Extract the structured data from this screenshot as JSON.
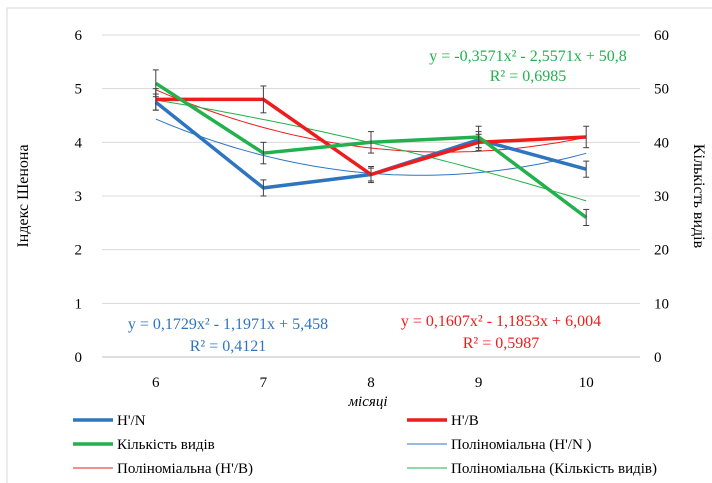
{
  "chart_data": {
    "type": "line",
    "xlabel": "місяці",
    "ylabel_left": "Індекс Шенона",
    "ylabel_right": "Кількість видів",
    "categories": [
      "6",
      "7",
      "8",
      "9",
      "10"
    ],
    "ylim_left": [
      0,
      6
    ],
    "ylim_right": [
      0,
      60
    ],
    "yticks_left": [
      "0",
      "1",
      "2",
      "3",
      "4",
      "5",
      "6"
    ],
    "yticks_right": [
      "0",
      "10",
      "20",
      "30",
      "40",
      "50",
      "60"
    ],
    "grid": true,
    "legend_position": "bottom",
    "series": [
      {
        "name": "H'/N",
        "axis": "left",
        "color": "#2e75c0",
        "width": 3.5,
        "values": [
          4.75,
          3.15,
          3.4,
          4.05,
          3.5
        ],
        "errors": [
          0.15,
          0.15,
          0.12,
          0.15,
          0.15
        ]
      },
      {
        "name": "H'/B",
        "axis": "left",
        "color": "#ee1c1c",
        "width": 3.5,
        "values": [
          4.8,
          4.8,
          3.4,
          4.0,
          4.1
        ],
        "errors": [
          0.2,
          0.25,
          0.15,
          0.15,
          0.2
        ]
      },
      {
        "name": "Кількість видів",
        "axis": "right",
        "color": "#22b14c",
        "width": 3.5,
        "values": [
          51,
          38,
          40,
          41,
          26
        ],
        "errors": [
          2.5,
          2.0,
          2.0,
          2.0,
          1.5
        ]
      }
    ],
    "trendlines": [
      {
        "name": "Поліноміальна (H'/N )",
        "axis": "left",
        "color": "#2e75c0",
        "coef": [
          0.1729,
          -1.1971,
          5.458
        ]
      },
      {
        "name": "Поліноміальна (H'/B)",
        "axis": "left",
        "color": "#ee1c1c",
        "coef": [
          0.1607,
          -1.1853,
          6.004
        ]
      },
      {
        "name": "Поліноміальна (Кількість видів)",
        "axis": "right",
        "color": "#22b14c",
        "coef": [
          -0.3571,
          -2.5571,
          50.8
        ]
      }
    ],
    "annotations": [
      {
        "eq": "y = -0,3571x² - 2,5571x + 50,8",
        "r2": "R² = 0,6985",
        "color": "#22b14c"
      },
      {
        "eq": "y = 0,1729x² - 1,1971x + 5,458",
        "r2": "R² = 0,4121",
        "color": "#2e75c0"
      },
      {
        "eq": "y = 0,1607x² - 1,1853x + 6,004",
        "r2": "R² = 0,5987",
        "color": "#ee1c1c"
      }
    ],
    "legend": [
      {
        "label": "H'/N",
        "color": "#2e75c0",
        "thick": true
      },
      {
        "label": "H'/B",
        "color": "#ee1c1c",
        "thick": true
      },
      {
        "label": "Кількість видів",
        "color": "#22b14c",
        "thick": true
      },
      {
        "label": "Поліноміальна (H'/N )",
        "color": "#2e75c0",
        "thick": false
      },
      {
        "label": "Поліноміальна (H'/B)",
        "color": "#ee1c1c",
        "thick": false
      },
      {
        "label": "Поліноміальна (Кількість видів)",
        "color": "#22b14c",
        "thick": false
      }
    ]
  }
}
